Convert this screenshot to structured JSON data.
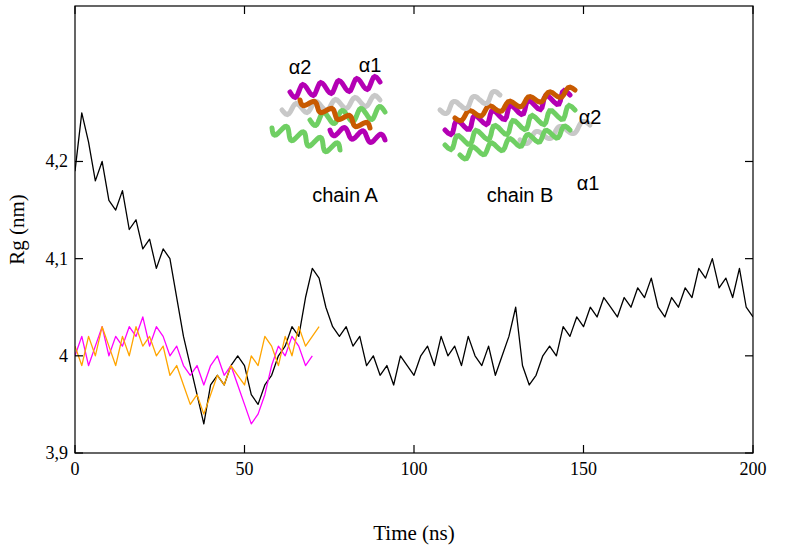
{
  "chart_data": {
    "type": "line",
    "x_label": "Time (ns)",
    "y_label": "Rg (nm)",
    "xlim": [
      0,
      200
    ],
    "xticks": [
      0,
      50,
      100,
      150,
      200
    ],
    "ylim": [
      3.9,
      4.36
    ],
    "yticks": [
      {
        "value": 3.9,
        "label": "3,9"
      },
      4,
      {
        "value": 4.1,
        "label": "4,1"
      },
      {
        "value": 4.2,
        "label": "4,2"
      }
    ],
    "grid": false,
    "annotations": [
      "α2",
      "α1",
      "chain A",
      "α2",
      "α1",
      "chain B"
    ],
    "series": [
      {
        "color": "#000000",
        "x": [
          0,
          2,
          4,
          6,
          8,
          10,
          12,
          14,
          16,
          18,
          20,
          22,
          24,
          26,
          28,
          30,
          32,
          34,
          36,
          38,
          40,
          42,
          44,
          46,
          48,
          50,
          52,
          54,
          56,
          58,
          60,
          62,
          64,
          66,
          68,
          70,
          72,
          74,
          76,
          78,
          80,
          82,
          84,
          86,
          88,
          90,
          92,
          94,
          96,
          98,
          100,
          102,
          104,
          106,
          108,
          110,
          112,
          114,
          116,
          118,
          120,
          122,
          124,
          126,
          128,
          130,
          132,
          134,
          136,
          138,
          140,
          142,
          144,
          146,
          148,
          150,
          152,
          154,
          156,
          158,
          160,
          162,
          164,
          166,
          168,
          170,
          172,
          174,
          176,
          178,
          180,
          182,
          184,
          186,
          188,
          190,
          192,
          194,
          196,
          198,
          200
        ],
        "values": [
          4.19,
          4.25,
          4.22,
          4.18,
          4.2,
          4.16,
          4.15,
          4.17,
          4.13,
          4.14,
          4.11,
          4.12,
          4.09,
          4.11,
          4.1,
          4.06,
          4.02,
          3.99,
          3.96,
          3.93,
          3.97,
          3.98,
          3.97,
          3.99,
          4.0,
          3.99,
          3.96,
          3.95,
          3.97,
          3.98,
          4.0,
          4.01,
          4.03,
          4.02,
          4.06,
          4.09,
          4.08,
          4.05,
          4.03,
          4.02,
          4.03,
          4.01,
          4.02,
          3.99,
          4.0,
          3.98,
          3.99,
          3.97,
          4.0,
          3.99,
          3.98,
          4.0,
          4.01,
          3.99,
          4.02,
          4.0,
          4.01,
          3.99,
          4.02,
          4.0,
          3.99,
          4.01,
          3.98,
          4.0,
          4.02,
          4.05,
          3.99,
          3.97,
          3.98,
          4.0,
          4.01,
          4.0,
          4.03,
          4.02,
          4.04,
          4.03,
          4.05,
          4.04,
          4.06,
          4.05,
          4.04,
          4.06,
          4.05,
          4.07,
          4.06,
          4.08,
          4.05,
          4.04,
          4.06,
          4.05,
          4.07,
          4.06,
          4.09,
          4.08,
          4.1,
          4.07,
          4.08,
          4.06,
          4.09,
          4.05,
          4.04
        ]
      },
      {
        "color": "#ff00ff",
        "x": [
          0,
          2,
          4,
          6,
          8,
          10,
          12,
          14,
          16,
          18,
          20,
          22,
          24,
          26,
          28,
          30,
          32,
          34,
          36,
          38,
          40,
          42,
          44,
          46,
          48,
          50,
          52,
          54,
          56,
          58,
          60,
          62,
          64,
          66,
          68,
          70
        ],
        "values": [
          4.0,
          4.02,
          3.99,
          4.01,
          4.03,
          4.0,
          4.02,
          4.01,
          4.03,
          4.02,
          4.04,
          4.01,
          4.03,
          4.02,
          4.0,
          4.01,
          3.99,
          3.98,
          3.99,
          3.97,
          3.99,
          4.0,
          3.98,
          3.99,
          3.97,
          3.95,
          3.93,
          3.94,
          3.96,
          3.99,
          4.01,
          4.0,
          4.02,
          4.01,
          3.99,
          4.0
        ]
      },
      {
        "color": "#ffa500",
        "x": [
          0,
          2,
          4,
          6,
          8,
          10,
          12,
          14,
          16,
          18,
          20,
          22,
          24,
          26,
          28,
          30,
          32,
          34,
          36,
          38,
          40,
          42,
          44,
          46,
          48,
          50,
          52,
          54,
          56,
          58,
          60,
          62,
          64,
          66,
          68,
          70,
          72
        ],
        "values": [
          4.01,
          3.99,
          4.02,
          4.0,
          4.03,
          4.01,
          3.99,
          4.02,
          4.0,
          4.03,
          4.01,
          4.02,
          4.0,
          4.01,
          3.98,
          3.99,
          3.97,
          3.95,
          3.96,
          3.94,
          3.96,
          3.98,
          3.97,
          3.99,
          3.98,
          3.97,
          4.0,
          3.99,
          4.02,
          4.01,
          3.99,
          4.02,
          4.0,
          4.03,
          4.01,
          4.02,
          4.03
        ]
      }
    ]
  }
}
